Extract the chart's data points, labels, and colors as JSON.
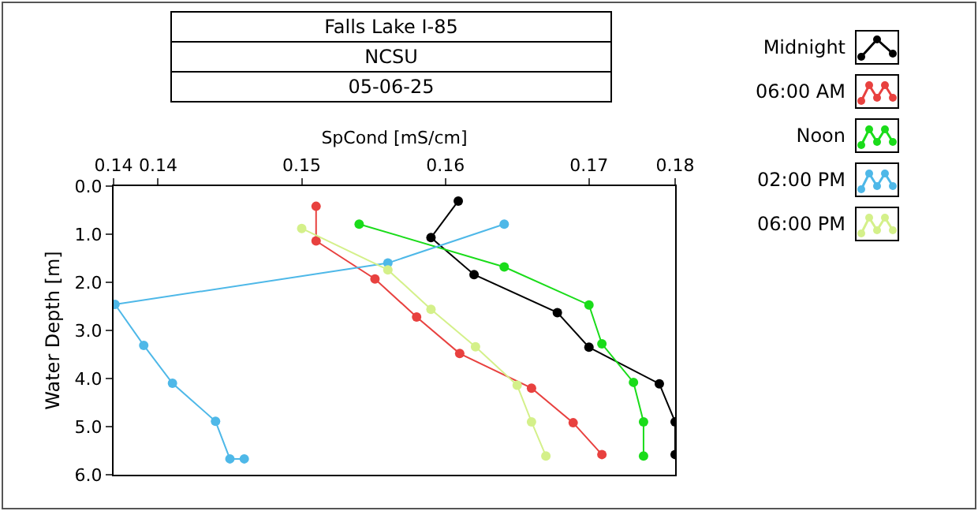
{
  "chart_data": {
    "type": "line",
    "title": "Falls Lake I-85",
    "subtitle": "NCSU",
    "annotations": [
      "05-06-25"
    ],
    "xlabel": "SpCond [mS/cm]",
    "ylabel": "Water Depth [m]",
    "xlim": [
      0.1369,
      0.176
    ],
    "xticks": [
      {
        "value": 0.1369,
        "label": "0.14"
      },
      {
        "value": 0.14,
        "label": "0.14"
      },
      {
        "value": 0.15,
        "label": "0.15"
      },
      {
        "value": 0.16,
        "label": "0.16"
      },
      {
        "value": 0.17,
        "label": "0.17"
      },
      {
        "value": 0.176,
        "label": "0.18"
      }
    ],
    "ylim": [
      6,
      0
    ],
    "yticks": [
      {
        "value": 0,
        "label": "0.0"
      },
      {
        "value": 1,
        "label": "1.0"
      },
      {
        "value": 2,
        "label": "2.0"
      },
      {
        "value": 3,
        "label": "3.0"
      },
      {
        "value": 4,
        "label": "4.0"
      },
      {
        "value": 5,
        "label": "5.0"
      },
      {
        "value": 6,
        "label": "6.0"
      }
    ],
    "grid": false,
    "legend": "top right",
    "marker": "circle",
    "line_style": "solid",
    "series": [
      {
        "name": "Midnight",
        "color": "#000000",
        "x": [
          0.1609,
          0.159,
          0.162,
          0.1678,
          0.17,
          0.1749,
          0.176,
          0.176
        ],
        "values": [
          0.31,
          1.07,
          1.84,
          2.63,
          3.35,
          4.11,
          4.9,
          5.58
        ]
      },
      {
        "name": "06:00 AM",
        "color": "#e8413f",
        "x": [
          0.151,
          0.151,
          0.1551,
          0.158,
          0.161,
          0.166,
          0.1689,
          0.1709
        ],
        "values": [
          0.42,
          1.14,
          1.93,
          2.72,
          3.48,
          4.2,
          4.92,
          5.58
        ]
      },
      {
        "name": "Noon",
        "color": "#1adc1a",
        "x": [
          0.154,
          0.1641,
          0.17,
          0.1709,
          0.1731,
          0.1738,
          0.1738
        ],
        "values": [
          0.79,
          1.68,
          2.47,
          3.28,
          4.08,
          4.9,
          5.61
        ]
      },
      {
        "name": "02:00 PM",
        "color": "#4eb8e8",
        "x": [
          0.1641,
          0.156,
          0.137,
          0.139,
          0.141,
          0.144,
          0.145,
          0.146
        ],
        "values": [
          0.79,
          1.6,
          2.46,
          3.31,
          4.1,
          4.89,
          5.67,
          5.67
        ]
      },
      {
        "name": "06:00 PM",
        "color": "#d4f08a",
        "x": [
          0.15,
          0.156,
          0.159,
          0.1621,
          0.165,
          0.166,
          0.167
        ],
        "values": [
          0.88,
          1.74,
          2.56,
          3.34,
          4.14,
          4.9,
          5.61
        ]
      }
    ]
  }
}
